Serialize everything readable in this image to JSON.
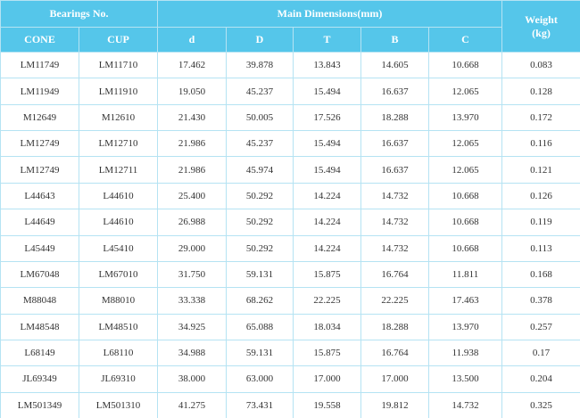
{
  "header": {
    "bearings": "Bearings No.",
    "dimensions": "Main Dimensions(mm)",
    "weight": "Weight",
    "weight_unit": "(kg)"
  },
  "table": {
    "columns": [
      "CONE",
      "CUP",
      "d",
      "D",
      "T",
      "B",
      "C"
    ],
    "rows": [
      [
        "LM11749",
        "LM11710",
        "17.462",
        "39.878",
        "13.843",
        "14.605",
        "10.668",
        "0.083"
      ],
      [
        "LM11949",
        "LM11910",
        "19.050",
        "45.237",
        "15.494",
        "16.637",
        "12.065",
        "0.128"
      ],
      [
        "M12649",
        "M12610",
        "21.430",
        "50.005",
        "17.526",
        "18.288",
        "13.970",
        "0.172"
      ],
      [
        "LM12749",
        "LM12710",
        "21.986",
        "45.237",
        "15.494",
        "16.637",
        "12.065",
        "0.116"
      ],
      [
        "LM12749",
        "LM12711",
        "21.986",
        "45.974",
        "15.494",
        "16.637",
        "12.065",
        "0.121"
      ],
      [
        "L44643",
        "L44610",
        "25.400",
        "50.292",
        "14.224",
        "14.732",
        "10.668",
        "0.126"
      ],
      [
        "L44649",
        "L44610",
        "26.988",
        "50.292",
        "14.224",
        "14.732",
        "10.668",
        "0.119"
      ],
      [
        "L45449",
        "L45410",
        "29.000",
        "50.292",
        "14.224",
        "14.732",
        "10.668",
        "0.113"
      ],
      [
        "LM67048",
        "LM67010",
        "31.750",
        "59.131",
        "15.875",
        "16.764",
        "11.811",
        "0.168"
      ],
      [
        "M88048",
        "M88010",
        "33.338",
        "68.262",
        "22.225",
        "22.225",
        "17.463",
        "0.378"
      ],
      [
        "LM48548",
        "LM48510",
        "34.925",
        "65.088",
        "18.034",
        "18.288",
        "13.970",
        "0.257"
      ],
      [
        "L68149",
        "L68110",
        "34.988",
        "59.131",
        "15.875",
        "16.764",
        "11.938",
        "0.17"
      ],
      [
        "JL69349",
        "JL69310",
        "38.000",
        "63.000",
        "17.000",
        "17.000",
        "13.500",
        "0.204"
      ],
      [
        "LM501349",
        "LM501310",
        "41.275",
        "73.431",
        "19.558",
        "19.812",
        "14.732",
        "0.325"
      ]
    ]
  }
}
